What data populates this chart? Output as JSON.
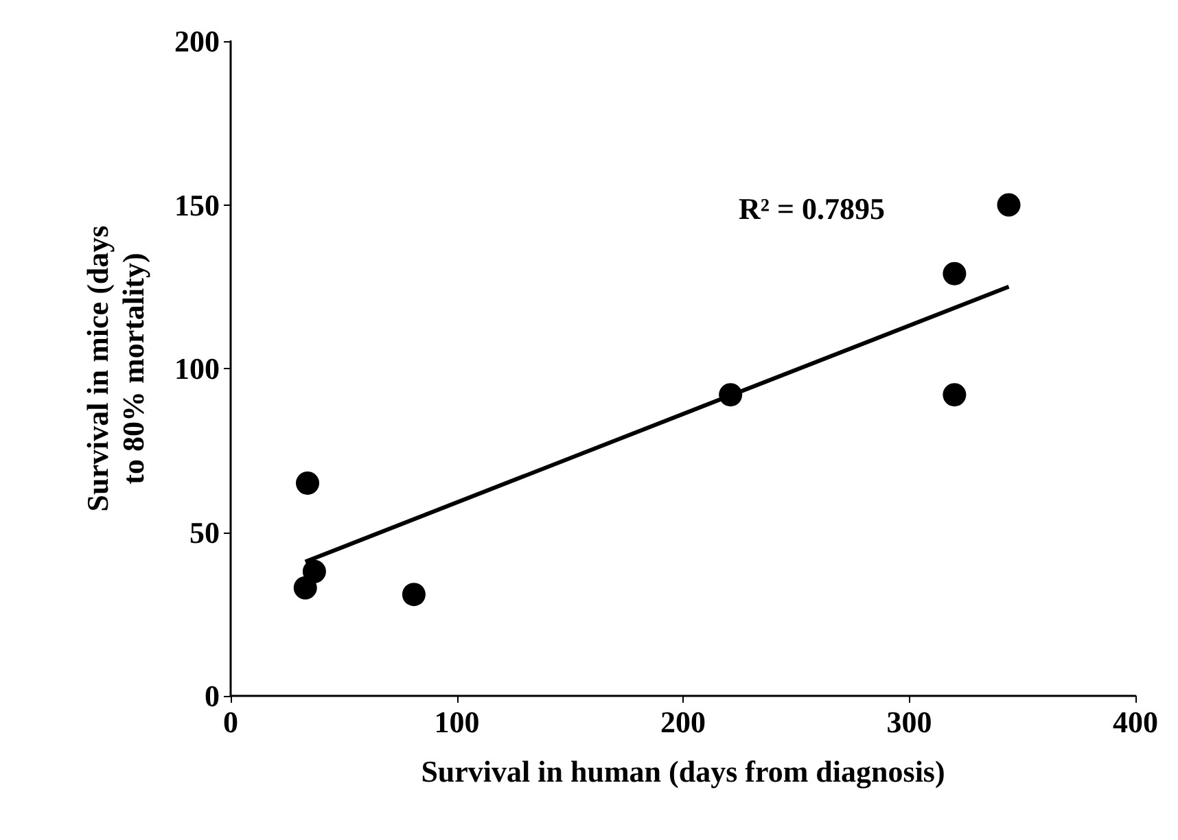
{
  "chart_data": {
    "type": "scatter",
    "xlabel": "Survival in human (days from diagnosis)",
    "ylabel": "Survival in mice (days to 80% mortality)",
    "annotations": [
      "R² = 0.7895"
    ],
    "xlim": [
      0,
      400
    ],
    "xticks": [
      0,
      100,
      200,
      300,
      400
    ],
    "ylim": [
      0,
      200
    ],
    "yticks": [
      0,
      50,
      100,
      150,
      200
    ],
    "grid": false,
    "marker": "circle",
    "series": [
      {
        "color": "#000000",
        "x": [
          34,
          37,
          33,
          81,
          221,
          320,
          320,
          344
        ],
        "values": [
          65,
          38,
          33,
          31,
          92,
          129,
          92,
          150
        ]
      },
      {
        "type": "line",
        "color": "#000000",
        "line_style": "solid",
        "marker": "none",
        "x": [
          33,
          344
        ],
        "values": [
          41,
          125
        ]
      }
    ]
  }
}
